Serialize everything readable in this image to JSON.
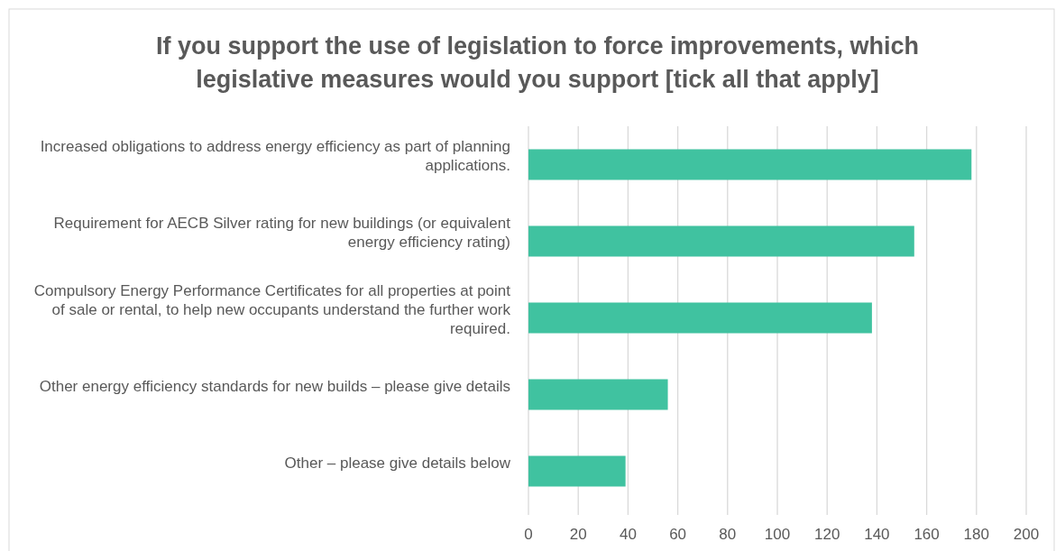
{
  "chart_data": {
    "type": "bar",
    "orientation": "horizontal",
    "title": "If you support the use of legislation to force improvements, which legislative measures would you support [tick all that apply]",
    "categories": [
      "Increased obligations to address energy efficiency as part of planning applications.",
      "Requirement for AECB Silver rating for new buildings (or equivalent energy efficiency rating)",
      "Compulsory Energy Performance Certificates for all properties at point of sale or rental, to help new occupants understand the further work required.",
      "Other energy efficiency standards for new builds – please give details",
      "Other – please give details below"
    ],
    "values": [
      178,
      155,
      138,
      56,
      39
    ],
    "color": "#40c2a0",
    "xlim": [
      0,
      200
    ],
    "xticks": [
      0,
      20,
      40,
      60,
      80,
      100,
      120,
      140,
      160,
      180,
      200
    ],
    "grid": "x"
  }
}
